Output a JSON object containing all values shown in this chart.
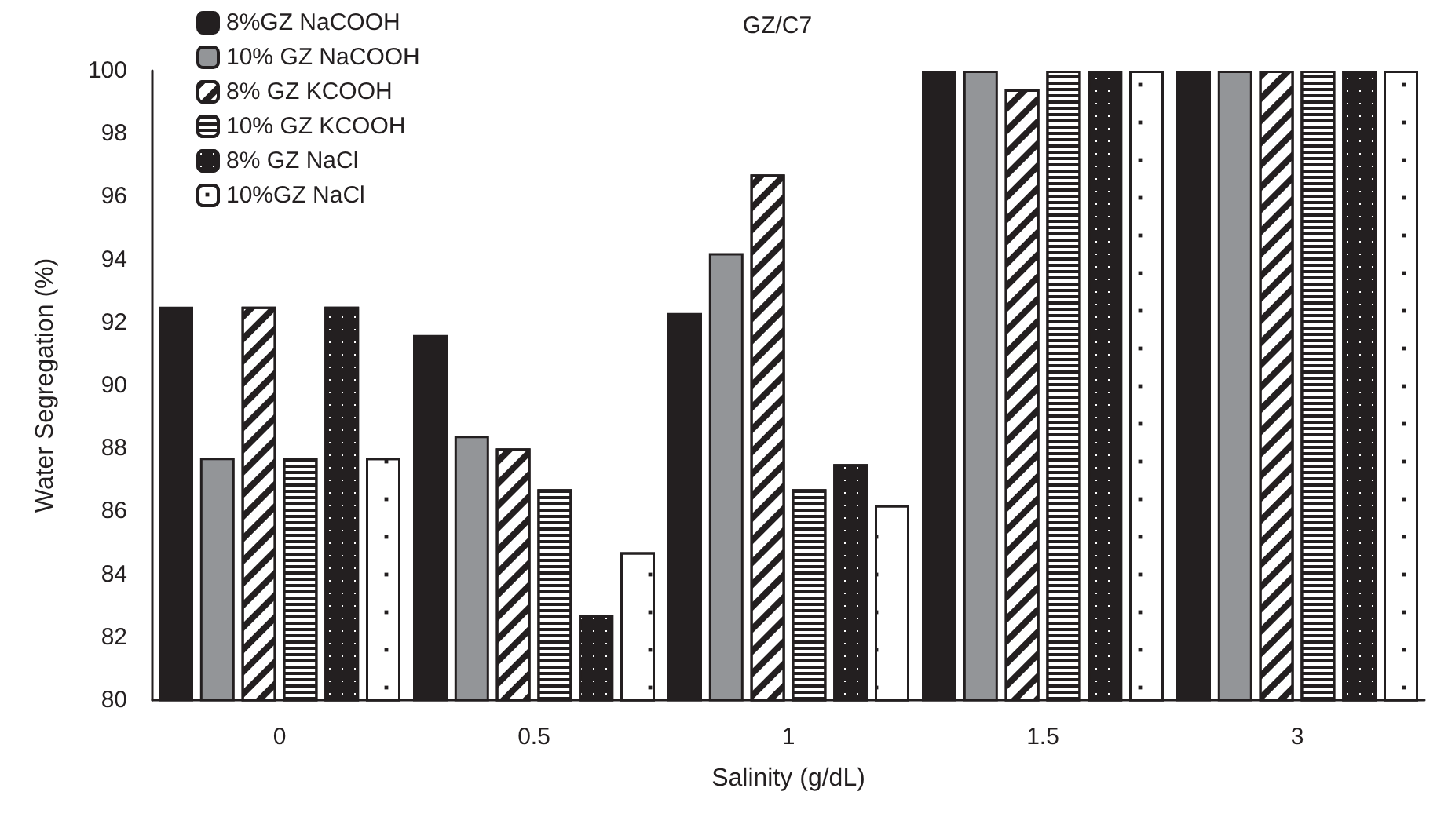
{
  "chart_data": {
    "type": "bar",
    "title": "GZ/C7",
    "xlabel": "Salinity (g/dL)",
    "ylabel": "Water Segregation (%)",
    "categories": [
      "0",
      "0.5",
      "1",
      "1.5",
      "3"
    ],
    "series": [
      {
        "name": "8%GZ NaCOOH",
        "color": "#231f20",
        "values": [
          92.5,
          91.6,
          92.3,
          100,
          100
        ]
      },
      {
        "name": "10% GZ NaCOOH",
        "color": "#939598",
        "values": [
          87.7,
          88.4,
          94.2,
          100,
          100
        ]
      },
      {
        "name": "8% GZ KCOOH",
        "color": "#ffffff",
        "values": [
          92.5,
          88,
          96.7,
          99.4,
          100
        ]
      },
      {
        "name": "10% GZ KCOOH",
        "color": "#ffffff",
        "values": [
          87.7,
          86.7,
          86.7,
          100,
          100
        ]
      },
      {
        "name": "8% GZ NaCl",
        "color": "#231f20",
        "values": [
          92.5,
          82.7,
          87.5,
          100,
          100
        ]
      },
      {
        "name": "10%GZ NaCl",
        "color": "#ffffff",
        "values": [
          87.7,
          84.7,
          86.2,
          100,
          100
        ]
      }
    ],
    "ylim": [
      80,
      100
    ],
    "yticks": [
      80,
      82,
      84,
      86,
      88,
      90,
      92,
      94,
      96,
      98,
      100
    ],
    "grid": false,
    "legend": "top left"
  }
}
